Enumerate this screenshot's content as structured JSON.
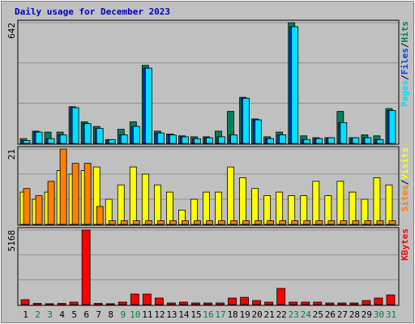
{
  "title": "Daily usage for December 2023",
  "legend_separator": "/",
  "weekend_color": "#008040",
  "weekends": [
    "2",
    "3",
    "9",
    "10",
    "16",
    "17",
    "23",
    "24",
    "30",
    "31"
  ],
  "chart_data": [
    {
      "type": "bar",
      "ylim": [
        0,
        642
      ],
      "yticks": [
        642
      ],
      "series": [
        {
          "name": "Hits",
          "color": "#00805c",
          "values": [
            25,
            65,
            60,
            60,
            195,
            115,
            90,
            20,
            75,
            115,
            415,
            65,
            50,
            40,
            35,
            35,
            65,
            170,
            245,
            130,
            35,
            60,
            642,
            40,
            30,
            30,
            170,
            30,
            45,
            40,
            185
          ]
        },
        {
          "name": "Files",
          "color": "#0040ff",
          "values": [
            15,
            60,
            25,
            45,
            190,
            105,
            80,
            20,
            45,
            90,
            400,
            55,
            45,
            35,
            25,
            30,
            35,
            45,
            240,
            125,
            25,
            45,
            620,
            20,
            25,
            30,
            110,
            30,
            30,
            20,
            175
          ]
        },
        {
          "name": "Pages",
          "color": "#00e0ff",
          "values": [
            15,
            60,
            25,
            45,
            190,
            105,
            80,
            20,
            45,
            90,
            400,
            55,
            45,
            35,
            25,
            30,
            35,
            45,
            240,
            125,
            25,
            45,
            620,
            20,
            25,
            30,
            110,
            30,
            30,
            20,
            175
          ]
        }
      ]
    },
    {
      "type": "bar",
      "ylim": [
        0,
        21
      ],
      "yticks": [
        21
      ],
      "series": [
        {
          "name": "Visits",
          "color": "#ffff00",
          "values": [
            9,
            7,
            9,
            15,
            14,
            15,
            16,
            7,
            11,
            16,
            14,
            11,
            9,
            4,
            7,
            9,
            9,
            16,
            13,
            10,
            8,
            9,
            8,
            8,
            12,
            8,
            12,
            9,
            7,
            13,
            11
          ]
        },
        {
          "name": "Sites",
          "color": "#ff8000",
          "values": [
            10,
            8,
            12,
            21,
            17,
            17,
            5,
            1,
            1,
            1,
            1,
            1,
            1,
            1,
            1,
            1,
            1,
            1,
            1,
            1,
            1,
            1,
            1,
            1,
            1,
            1,
            1,
            1,
            1,
            1,
            1
          ]
        }
      ]
    },
    {
      "type": "bar",
      "ylim": [
        0,
        5168
      ],
      "yticks": [
        5168
      ],
      "categories": [
        "1",
        "2",
        "3",
        "4",
        "5",
        "6",
        "7",
        "8",
        "9",
        "10",
        "11",
        "12",
        "13",
        "14",
        "15",
        "16",
        "17",
        "18",
        "19",
        "20",
        "21",
        "22",
        "23",
        "24",
        "25",
        "26",
        "27",
        "28",
        "29",
        "30",
        "31"
      ],
      "series": [
        {
          "name": "KBytes",
          "color": "#ff0000",
          "values": [
            340,
            80,
            60,
            80,
            170,
            5168,
            80,
            60,
            170,
            730,
            730,
            450,
            110,
            170,
            110,
            110,
            110,
            450,
            500,
            280,
            170,
            1120,
            170,
            170,
            170,
            110,
            110,
            110,
            280,
            450,
            670
          ]
        }
      ]
    }
  ]
}
